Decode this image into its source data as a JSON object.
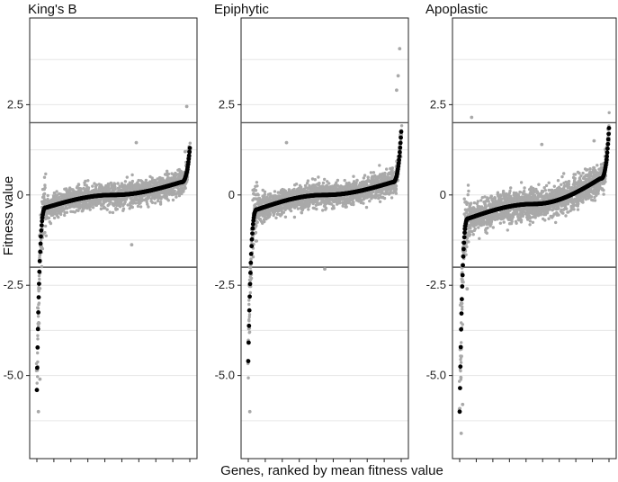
{
  "chart_data": {
    "type": "scatter",
    "xlabel": "Genes, ranked by mean fitness value",
    "ylabel": "Fitness value",
    "ylim": [
      -7.3,
      4.9
    ],
    "yticks": [
      {
        "value": 2.5,
        "label": "2.5"
      },
      {
        "value": 0,
        "label": "0"
      },
      {
        "value": -2.5,
        "label": "-2.5"
      },
      {
        "value": -5.0,
        "label": "-5.0"
      }
    ],
    "threshold_lines": [
      2,
      -2
    ],
    "grid": true,
    "colors": {
      "mean_points": "#000000",
      "replicate_points": "#a9a9a9",
      "threshold": "#555555",
      "grid": "#e6e6e6",
      "frame": "#222222"
    },
    "panels": [
      {
        "title": "King's B",
        "mean_curve": {
          "min": -5.4,
          "low_knee": -0.35,
          "center": 0.0,
          "high_knee": 0.35,
          "max": 1.3
        },
        "outliers": [
          {
            "x": 0.98,
            "y": 2.45
          },
          {
            "x": 0.65,
            "y": 1.45
          },
          {
            "x": 0.97,
            "y": 1.2
          },
          {
            "x": 0.62,
            "y": -1.38
          },
          {
            "x": 0.01,
            "y": -6.0
          },
          {
            "x": 0.02,
            "y": -5.1
          }
        ]
      },
      {
        "title": "Epiphytic",
        "mean_curve": {
          "min": -4.6,
          "low_knee": -0.4,
          "center": 0.0,
          "high_knee": 0.35,
          "max": 1.75
        },
        "outliers": [
          {
            "x": 0.99,
            "y": 4.05
          },
          {
            "x": 0.98,
            "y": 3.3
          },
          {
            "x": 0.97,
            "y": 2.9
          },
          {
            "x": 0.25,
            "y": 1.45
          },
          {
            "x": 0.5,
            "y": -2.05
          },
          {
            "x": 0.01,
            "y": -6.0
          }
        ]
      },
      {
        "title": "Apoplastic",
        "mean_curve": {
          "min": -6.0,
          "low_knee": -0.65,
          "center": -0.25,
          "high_knee": 0.45,
          "max": 1.85
        },
        "outliers": [
          {
            "x": 0.08,
            "y": 2.15
          },
          {
            "x": 0.9,
            "y": 1.5
          },
          {
            "x": 0.55,
            "y": 1.4
          },
          {
            "x": 0.05,
            "y": -2.6
          },
          {
            "x": 0.01,
            "y": -6.6
          },
          {
            "x": 0.02,
            "y": -5.8
          }
        ]
      }
    ]
  }
}
